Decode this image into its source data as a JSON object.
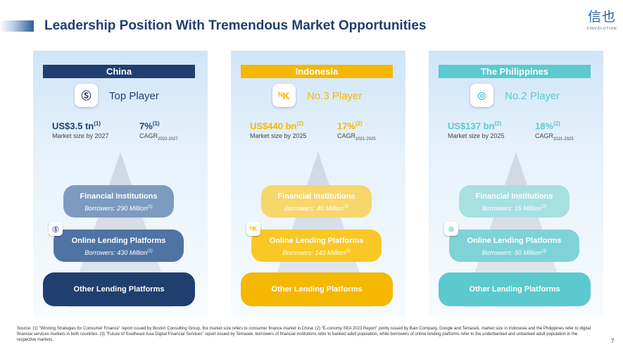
{
  "slide": {
    "title": "Leadership Position With Tremendous Market Opportunities",
    "page_number": "7"
  },
  "logo": {
    "glyphs": "信也",
    "text": "FINVOLUTION"
  },
  "panels": [
    {
      "country": "China",
      "header_color": "#1f3f6e",
      "app_icon": "china-app-icon",
      "app_icon_glyph": "Ⓢ",
      "rank": "Top Player",
      "rank_color": "#1f3f6e",
      "value_color": "#1f3f6e",
      "market_size": {
        "value": "US$3.5 tn",
        "note": "(1)",
        "label": "Market size by 2027"
      },
      "cagr": {
        "value": "7%",
        "note": "(1)",
        "label": "CAGR",
        "period": "2022-2027"
      },
      "tiers": [
        {
          "name": "Financial Institutions",
          "borrowers": "Borrowers: 290 Million",
          "note": "(1)"
        },
        {
          "name": "Online Lending Platforms",
          "borrowers": "Borrowers: 430 Million",
          "note": "(1)"
        },
        {
          "name": "Other Lending Platforms"
        }
      ],
      "tier_colors": [
        "#7d9bc1",
        "#4f73a3",
        "#1f3f6e"
      ]
    },
    {
      "country": "Indonesia",
      "header_color": "#f5b800",
      "app_icon": "indonesia-app-icon",
      "app_icon_glyph": "ᴺK",
      "rank": "No.3 Player",
      "rank_color": "#f5b800",
      "value_color": "#f5b800",
      "market_size": {
        "value": "US$440 bn",
        "note": "(2)",
        "label": "Market size by 2025"
      },
      "cagr": {
        "value": "17%",
        "note": "(2)",
        "label": "CAGR",
        "period": "2021-2025"
      },
      "tiers": [
        {
          "name": "Financial Institutions",
          "borrowers": "Borrowers: 40 Million",
          "note": "(3)"
        },
        {
          "name": "Online Lending Platforms",
          "borrowers": "Borrowers: 140 Million",
          "note": "(3)"
        },
        {
          "name": "Other Lending Platforms"
        }
      ],
      "tier_colors": [
        "#f7d66c",
        "#f9c824",
        "#f5b800"
      ]
    },
    {
      "country": "The Philippines",
      "header_color": "#5cc9ce",
      "app_icon": "philippines-app-icon",
      "app_icon_glyph": "◎",
      "rank": "No.2 Player",
      "rank_color": "#5cc9ce",
      "value_color": "#5cc9ce",
      "market_size": {
        "value": "US$137 bn",
        "note": "(2)",
        "label": "Market size by 2025"
      },
      "cagr": {
        "value": "18%",
        "note": "(2)",
        "label": "CAGR",
        "period": "2021-2025"
      },
      "tiers": [
        {
          "name": "Financial Institutions",
          "borrowers": "Borrowers: 15 Million",
          "note": "(3)"
        },
        {
          "name": "Online Lending Platforms",
          "borrowers": "Borrowers: 50 Million",
          "note": "(3)"
        },
        {
          "name": "Other Lending Platforms"
        }
      ],
      "tier_colors": [
        "#a8e0e2",
        "#7fd3d7",
        "#5cc9ce"
      ]
    }
  ],
  "footnote": "Source: (1) \"Winning Strategies for Consumer Finance\" report issued by Boston Consulting Group, the market size refers to consumer finance market in China. (2) \"E-conomy SEA 2023 Report\" jointly issued by Bain Company, Google and Temasek, market size in Indonesia and the Philippines refer to digital financial services markets in both countries. (3) \"Future of Southeast Asia Digital Financial Services\" report issued by Temasek, borrowers of financial institutions refer to banked adult population, while borrowers of online lending platforms refer to the underbanked and unbanked adult population in the respective markets."
}
